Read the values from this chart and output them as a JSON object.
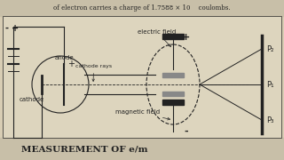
{
  "bg_color": "#d8cdb4",
  "top_text": "of electron carries a charge of 1.7588 × 10    coulombs.",
  "bottom_text": "MEASUREMENT OF e/m",
  "diagram_bg": "#e8e0cc",
  "line_color": "#222222",
  "label_anode": "anode",
  "label_cathode": "cathode",
  "label_cathode_rays": "cathode rays",
  "label_electric_field": "electric field",
  "label_magnetic_field": "magnetic field",
  "label_plus_top": "+",
  "label_minus_bottom": "-",
  "label_P2": "P₂",
  "label_P1": "P₁",
  "label_P3": "P₃",
  "label_plus_battery": "+",
  "label_minus_battery": "-",
  "label_anode_plus": "+"
}
